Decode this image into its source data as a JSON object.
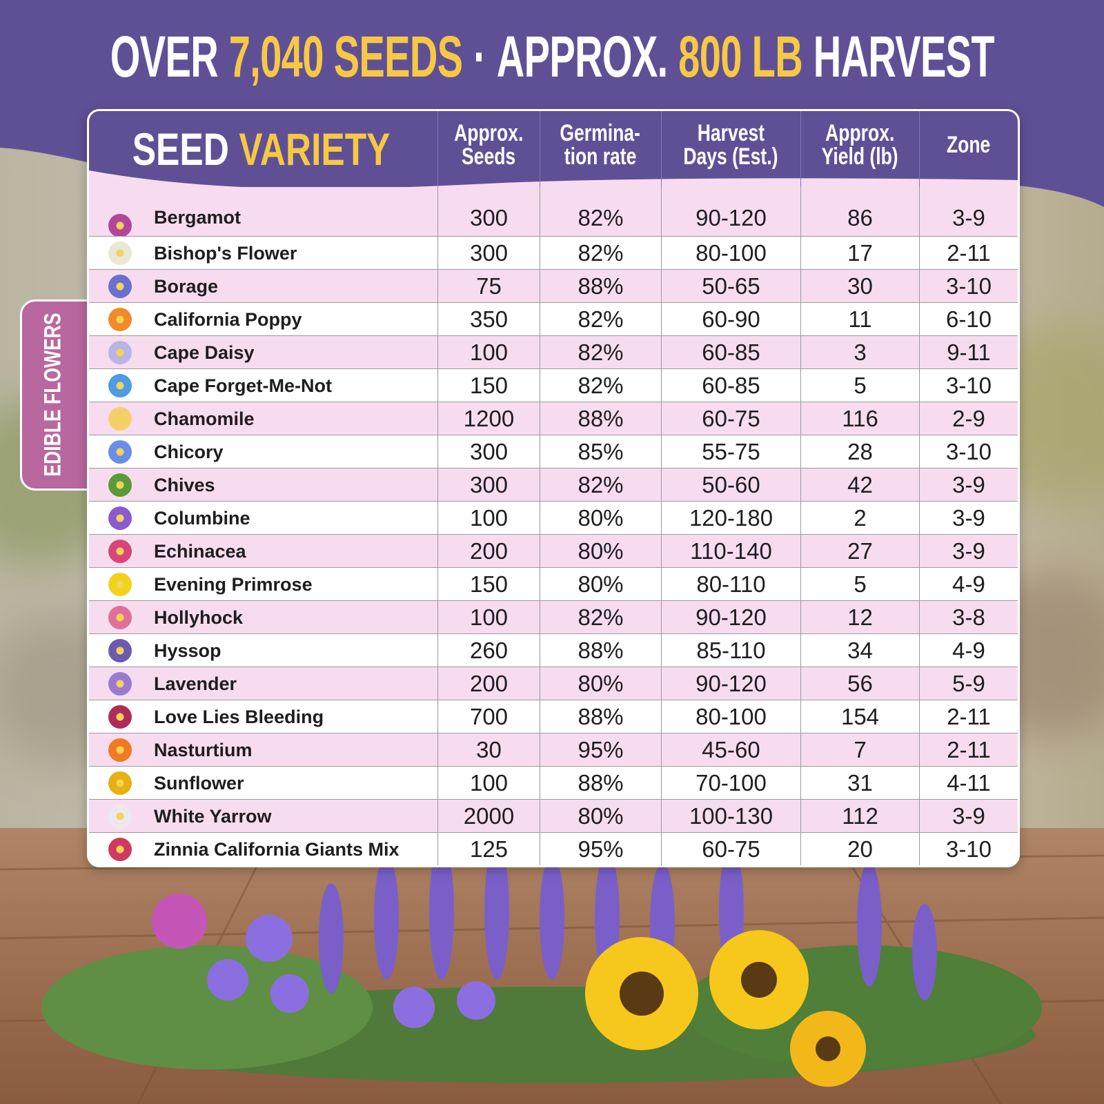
{
  "title": [
    "OVER",
    "7,040 SEEDS",
    "·",
    "APPROX.",
    "800 LB",
    "HARVEST"
  ],
  "side_tab": "EDIBLE FLOWERS",
  "table": {
    "header": {
      "variety": [
        "SEED",
        "VARIETY"
      ],
      "columns": [
        [
          "Approx.",
          "Seeds"
        ],
        [
          "Germina-",
          "tion rate"
        ],
        [
          "Harvest",
          "Days (Est.)"
        ],
        [
          "Approx.",
          "Yield (lb)"
        ],
        [
          "Zone"
        ]
      ]
    },
    "rows": [
      [
        "Bergamot",
        "300",
        "82%",
        "90-120",
        "86",
        "3-9"
      ],
      [
        "Bishop's Flower",
        "300",
        "82%",
        "80-100",
        "17",
        "2-11"
      ],
      [
        "Borage",
        "75",
        "88%",
        "50-65",
        "30",
        "3-10"
      ],
      [
        "California Poppy",
        "350",
        "82%",
        "60-90",
        "11",
        "6-10"
      ],
      [
        "Cape Daisy",
        "100",
        "82%",
        "60-85",
        "3",
        "9-11"
      ],
      [
        "Cape Forget-Me-Not",
        "150",
        "82%",
        "60-85",
        "5",
        "3-10"
      ],
      [
        "Chamomile",
        "1200",
        "88%",
        "60-75",
        "116",
        "2-9"
      ],
      [
        "Chicory",
        "300",
        "85%",
        "55-75",
        "28",
        "3-10"
      ],
      [
        "Chives",
        "300",
        "82%",
        "50-60",
        "42",
        "3-9"
      ],
      [
        "Columbine",
        "100",
        "80%",
        "120-180",
        "2",
        "3-9"
      ],
      [
        "Echinacea",
        "200",
        "80%",
        "110-140",
        "27",
        "3-9"
      ],
      [
        "Evening Primrose",
        "150",
        "80%",
        "80-110",
        "5",
        "4-9"
      ],
      [
        "Hollyhock",
        "100",
        "82%",
        "90-120",
        "12",
        "3-8"
      ],
      [
        "Hyssop",
        "260",
        "88%",
        "85-110",
        "34",
        "4-9"
      ],
      [
        "Lavender",
        "200",
        "80%",
        "90-120",
        "56",
        "5-9"
      ],
      [
        "Love Lies Bleeding",
        "700",
        "88%",
        "80-100",
        "154",
        "2-11"
      ],
      [
        "Nasturtium",
        "30",
        "95%",
        "45-60",
        "7",
        "2-11"
      ],
      [
        "Sunflower",
        "100",
        "88%",
        "70-100",
        "31",
        "4-11"
      ],
      [
        "White Yarrow",
        "2000",
        "80%",
        "100-130",
        "112",
        "3-9"
      ],
      [
        "Zinnia California Giants Mix",
        "125",
        "95%",
        "60-75",
        "20",
        "3-10"
      ]
    ]
  }
}
